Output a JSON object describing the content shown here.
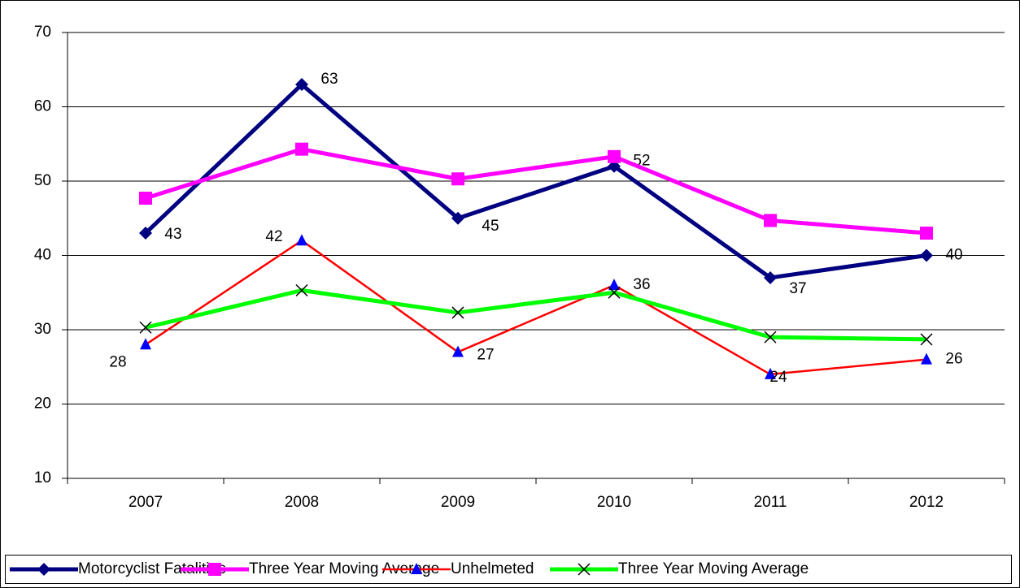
{
  "chart_data": {
    "type": "line",
    "categories": [
      "2007",
      "2008",
      "2009",
      "2010",
      "2011",
      "2012"
    ],
    "series": [
      {
        "name": "Motorcyclist Fatalities",
        "color": "#000080",
        "marker": "diamond",
        "values": [
          43,
          63,
          45,
          52,
          37,
          40
        ],
        "data_labels": true
      },
      {
        "name": "Three Year  Moving Average",
        "color": "#ff00ff",
        "marker": "square",
        "values": [
          47.7,
          54.3,
          50.3,
          53.3,
          44.7,
          43
        ]
      },
      {
        "name": "Unhelmeted",
        "color": "#ff0000",
        "marker": "triangle",
        "marker_color": "#0000ff",
        "values": [
          28,
          42,
          27,
          36,
          24,
          26
        ],
        "data_labels": true
      },
      {
        "name": "Three Year  Moving Average",
        "color": "#00ff00",
        "marker": "x",
        "marker_color": "#000000",
        "values": [
          30.3,
          35.3,
          32.3,
          35,
          29,
          28.7
        ]
      }
    ],
    "ylim": [
      10,
      70
    ],
    "yticks": [
      10,
      20,
      30,
      40,
      50,
      60,
      70
    ],
    "grid": true,
    "legend": "bottom"
  }
}
